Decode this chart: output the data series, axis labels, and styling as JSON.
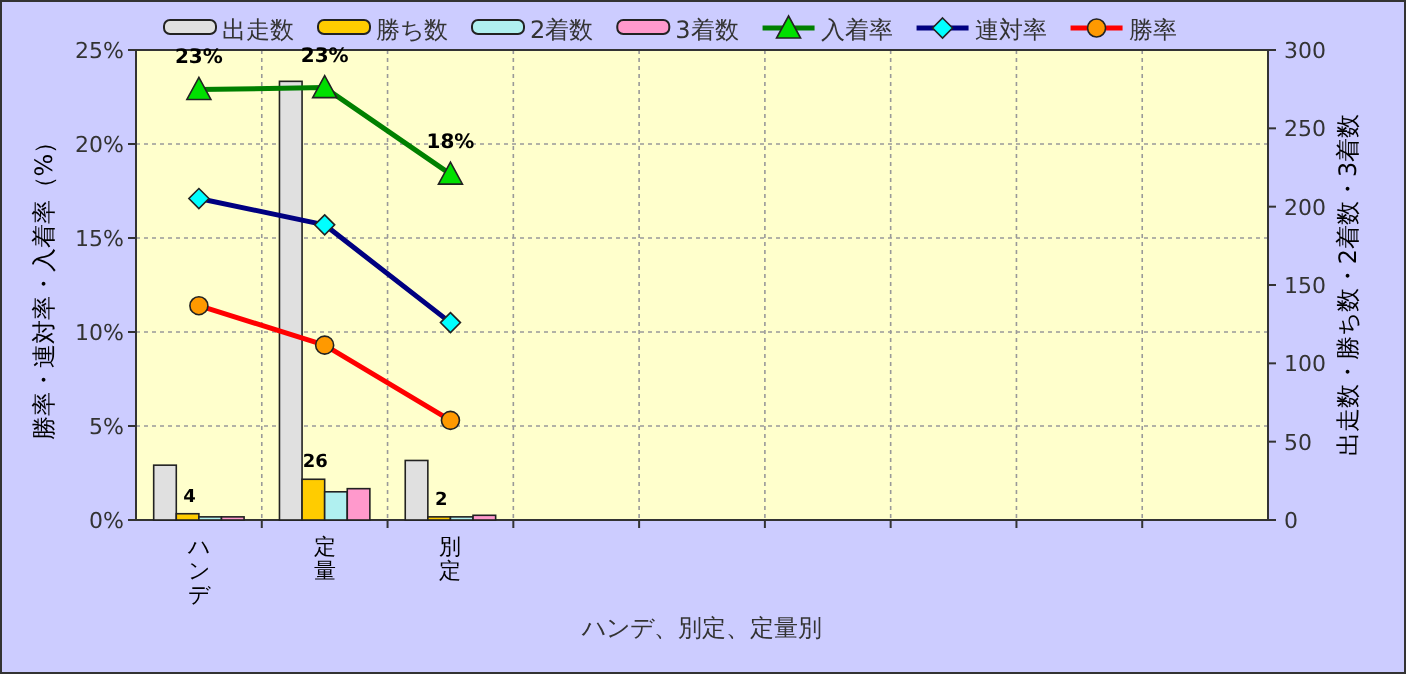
{
  "chart_data": {
    "type": "bar",
    "categories": [
      "ハンデ",
      "定量",
      "別定",
      null,
      null,
      null,
      null,
      null,
      null
    ],
    "xlabel": "ハンデ、別定、定量別",
    "ylabel": "勝率・連対率・入着率（%）",
    "y2label": "出走数・勝ち数・2着数・3着数",
    "ylim": [
      0,
      25
    ],
    "yticks": [
      {
        "value": 0,
        "label": "0%"
      },
      {
        "value": 5,
        "label": "5%"
      },
      {
        "value": 10,
        "label": "10%"
      },
      {
        "value": 15,
        "label": "15%"
      },
      {
        "value": 20,
        "label": "20%"
      },
      {
        "value": 25,
        "label": "25%"
      }
    ],
    "y2lim": [
      0,
      300
    ],
    "y2ticks": [
      0,
      50,
      100,
      150,
      200,
      250,
      300
    ],
    "grid": true,
    "legend": "top",
    "series": [
      {
        "name": "出走数",
        "axis": "y2",
        "color": "#e0e0e0",
        "values": [
          35,
          280,
          38,
          null,
          null,
          null,
          null,
          null,
          null
        ]
      },
      {
        "name": "勝ち数",
        "axis": "y2",
        "color": "#ffcc00",
        "values": [
          4,
          26,
          2,
          null,
          null,
          null,
          null,
          null,
          null
        ],
        "value_labels": [
          "4",
          "26",
          "2",
          null,
          null,
          null,
          null,
          null,
          null
        ]
      },
      {
        "name": "2着数",
        "axis": "y2",
        "color": "#b0f0f0",
        "values": [
          2,
          18,
          2,
          null,
          null,
          null,
          null,
          null,
          null
        ]
      },
      {
        "name": "3着数",
        "axis": "y2",
        "color": "#ff99cc",
        "values": [
          2,
          20,
          3,
          null,
          null,
          null,
          null,
          null,
          null
        ]
      },
      {
        "name": "入着率",
        "type": "line",
        "color": "#008000",
        "marker": "triangle",
        "values": [
          22.9,
          23.0,
          18.4,
          null,
          null,
          null,
          null,
          null,
          null
        ],
        "value_labels": [
          "23%",
          "23%",
          "18%",
          null,
          null,
          null,
          null,
          null,
          null
        ]
      },
      {
        "name": "連対率",
        "type": "line",
        "color": "#000080",
        "marker": "diamond",
        "values": [
          17.1,
          15.7,
          10.5,
          null,
          null,
          null,
          null,
          null,
          null
        ]
      },
      {
        "name": "勝率",
        "type": "line",
        "color": "#ff0000",
        "marker": "circle",
        "values": [
          11.4,
          9.3,
          5.3,
          null,
          null,
          null,
          null,
          null,
          null
        ]
      }
    ]
  }
}
